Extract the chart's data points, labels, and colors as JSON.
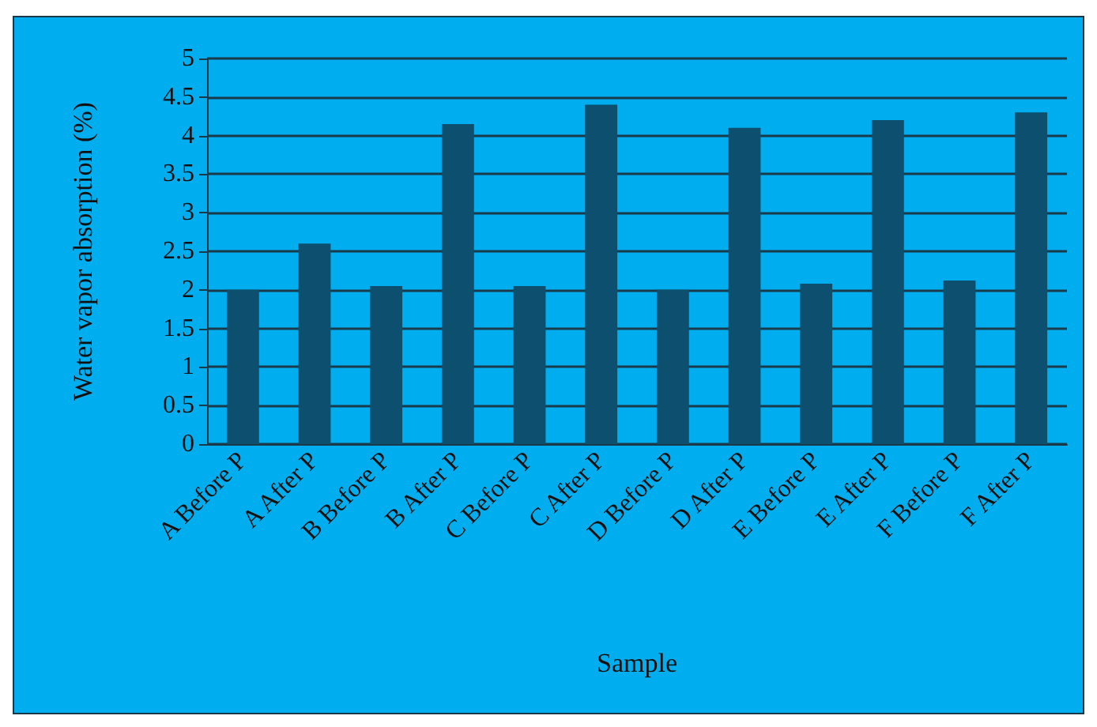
{
  "chart_data": {
    "type": "bar",
    "xlabel": "Sample",
    "ylabel": "Water vapor absorption (%)",
    "categories": [
      "A Before P",
      "A After P",
      "B Before P",
      "B After P",
      "C Before P",
      "C After P",
      "D Before P",
      "D After P",
      "E Before P",
      "E After P",
      "F Before P",
      "F After P"
    ],
    "values": [
      2.0,
      2.6,
      2.05,
      4.15,
      2.05,
      4.4,
      2.0,
      4.1,
      2.08,
      4.2,
      2.12,
      4.3
    ],
    "color": "#0d4f6e",
    "ylim": [
      0,
      5
    ],
    "yticks": [
      0,
      0.5,
      1,
      1.5,
      2,
      2.5,
      3,
      3.5,
      4,
      4.5,
      5
    ],
    "grid": "y"
  }
}
